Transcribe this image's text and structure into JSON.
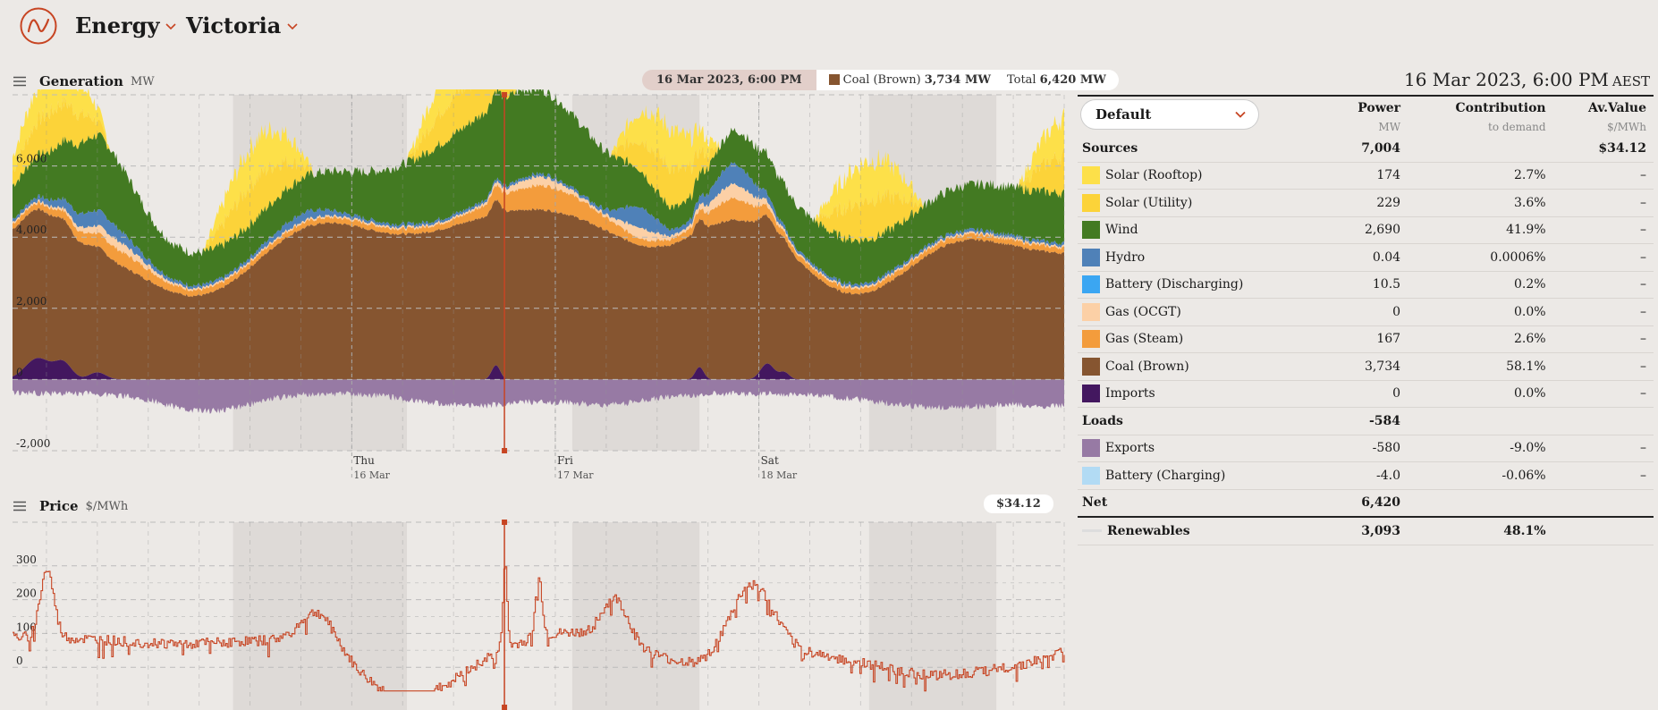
{
  "header": {
    "nav": [
      {
        "label": "Energy"
      },
      {
        "label": "Victoria"
      }
    ]
  },
  "generation": {
    "title": "Generation",
    "unit": "MW",
    "hover_date": "16 Mar 2023, 6:00 PM",
    "hover_series": "Coal (Brown)",
    "hover_value": "3,734 MW",
    "hover_total_label": "Total",
    "hover_total_value": "6,420 MW",
    "colors": {
      "solar_rooftop": "#fde049",
      "solar_utility": "#fcd339",
      "wind": "#437a22",
      "hydro": "#4f81b8",
      "battery_discharging": "#3ba6f2",
      "gas_ocgt": "#fcd0a6",
      "gas_steam": "#f39c3c",
      "coal_brown": "#865530",
      "imports": "#43175f",
      "exports": "#977aa4",
      "battery_charging": "#b2dbf4"
    }
  },
  "price": {
    "title": "Price",
    "unit": "$/MWh",
    "current": "$34.12"
  },
  "chart_data": [
    {
      "type": "area",
      "title": "Generation",
      "ylabel": "MW",
      "y_ticks": [
        "6,000",
        "4,000",
        "2,000",
        "0",
        "-2,000"
      ],
      "y_tick_values": [
        6000,
        4000,
        2000,
        0,
        -2000
      ],
      "ylim": [
        -2000,
        8000
      ],
      "x_ticks": [
        {
          "day": "Thu",
          "date": "16 Mar"
        },
        {
          "day": "Fri",
          "date": "17 Mar"
        },
        {
          "day": "Sat",
          "date": "18 Mar"
        }
      ],
      "x_range_hours": [
        -40,
        84
      ],
      "x_tick_hours": [
        0,
        24,
        48
      ],
      "cursor_hour": 18,
      "grid": true,
      "series": [
        {
          "name": "Imports",
          "key": "imports"
        },
        {
          "name": "Coal (Brown)",
          "key": "coal_brown"
        },
        {
          "name": "Gas (Steam)",
          "key": "gas_steam"
        },
        {
          "name": "Gas (OCGT)",
          "key": "gas_ocgt"
        },
        {
          "name": "Hydro",
          "key": "hydro"
        },
        {
          "name": "Wind",
          "key": "wind"
        },
        {
          "name": "Solar (Utility)",
          "key": "solar_utility"
        },
        {
          "name": "Solar (Rooftop)",
          "key": "solar_rooftop"
        },
        {
          "name": "Exports",
          "key": "exports"
        }
      ]
    },
    {
      "type": "line",
      "title": "Price",
      "ylabel": "$/MWh",
      "y_ticks": [
        "300",
        "200",
        "100",
        "0"
      ],
      "y_tick_values": [
        300,
        200,
        100,
        0
      ],
      "ylim": [
        -100,
        400
      ],
      "x_range_hours": [
        -40,
        84
      ],
      "cursor_hour": 18,
      "grid": true
    }
  ],
  "table": {
    "datetime": "16 Mar 2023, 6:00 PM",
    "timezone": "AEST",
    "select": "Default",
    "columns": [
      {
        "label": "Power",
        "sub": "MW"
      },
      {
        "label": "Contribution",
        "sub": "to demand"
      },
      {
        "label": "Av.Value",
        "sub": "$/MWh"
      }
    ],
    "sources": {
      "label": "Sources",
      "power": "7,004",
      "contribution": "",
      "value": "$34.12"
    },
    "rows_sources": [
      {
        "name": "Solar (Rooftop)",
        "color": "#fde049",
        "power": "174",
        "contribution": "2.7%",
        "value": "–"
      },
      {
        "name": "Solar (Utility)",
        "color": "#fcd339",
        "power": "229",
        "contribution": "3.6%",
        "value": "–"
      },
      {
        "name": "Wind",
        "color": "#437a22",
        "power": "2,690",
        "contribution": "41.9%",
        "value": "–"
      },
      {
        "name": "Hydro",
        "color": "#4f81b8",
        "power": "0.04",
        "contribution": "0.0006%",
        "value": "–"
      },
      {
        "name": "Battery (Discharging)",
        "color": "#3ba6f2",
        "power": "10.5",
        "contribution": "0.2%",
        "value": "–"
      },
      {
        "name": "Gas (OCGT)",
        "color": "#fcd0a6",
        "power": "0",
        "contribution": "0.0%",
        "value": "–"
      },
      {
        "name": "Gas (Steam)",
        "color": "#f39c3c",
        "power": "167",
        "contribution": "2.6%",
        "value": "–"
      },
      {
        "name": "Coal (Brown)",
        "color": "#865530",
        "power": "3,734",
        "contribution": "58.1%",
        "value": "–"
      },
      {
        "name": "Imports",
        "color": "#43175f",
        "power": "0",
        "contribution": "0.0%",
        "value": "–"
      }
    ],
    "loads": {
      "label": "Loads",
      "power": "-584"
    },
    "rows_loads": [
      {
        "name": "Exports",
        "color": "#977aa4",
        "power": "-580",
        "contribution": "-9.0%",
        "value": "–"
      },
      {
        "name": "Battery (Charging)",
        "color": "#b2dbf4",
        "power": "-4.0",
        "contribution": "-0.06%",
        "value": "–"
      }
    ],
    "net": {
      "label": "Net",
      "power": "6,420"
    },
    "renewables": {
      "label": "Renewables",
      "power": "3,093",
      "contribution": "48.1%"
    }
  }
}
